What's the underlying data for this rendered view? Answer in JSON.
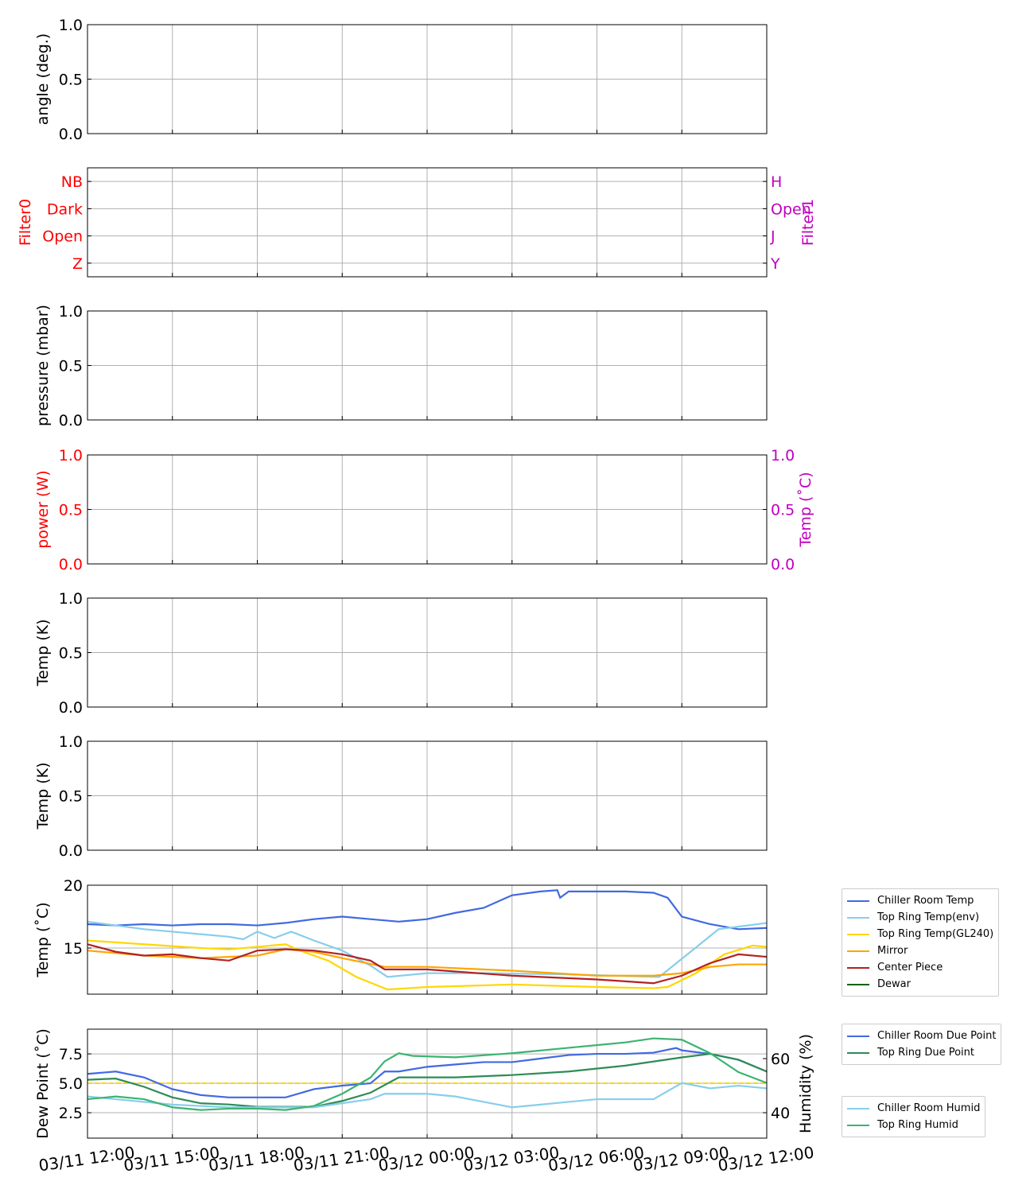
{
  "chart_data": [
    {
      "type": "line",
      "ylabel": "angle (deg.)",
      "ylim": [
        0,
        1
      ],
      "yticks": [
        "0.0",
        "0.5",
        "1.0"
      ],
      "series": []
    },
    {
      "type": "line",
      "ylabel": "Filter0",
      "ylabel_color": "#ff0000",
      "yticks": [
        "Z",
        "Open",
        "Dark",
        "NB"
      ],
      "ylabel2": "Filter1",
      "ylabel2_color": "#c000c0",
      "yticks2": [
        "Y",
        "J",
        "Open",
        "H"
      ],
      "series": []
    },
    {
      "type": "line",
      "ylabel": "pressure (mbar)",
      "ylim": [
        0,
        1
      ],
      "yticks": [
        "0.0",
        "0.5",
        "1.0"
      ],
      "series": []
    },
    {
      "type": "line",
      "ylabel": "power (W)",
      "ylabel_color": "#ff0000",
      "ylim": [
        0,
        1
      ],
      "yticks": [
        "0.0",
        "0.5",
        "1.0"
      ],
      "ylabel2": "Temp (˚C)",
      "ylabel2_color": "#c000c0",
      "ylim2": [
        0,
        1
      ],
      "yticks2": [
        "0.0",
        "0.5",
        "1.0"
      ],
      "series": []
    },
    {
      "type": "line",
      "ylabel": "Temp (K)",
      "ylim": [
        0,
        1
      ],
      "yticks": [
        "0.0",
        "0.5",
        "1.0"
      ],
      "series": []
    },
    {
      "type": "line",
      "ylabel": "Temp (K)",
      "ylim": [
        0,
        1
      ],
      "yticks": [
        "0.0",
        "0.5",
        "1.0"
      ],
      "series": []
    },
    {
      "type": "line",
      "ylabel": "Temp (˚C)",
      "ylim": [
        11.33,
        20
      ],
      "yticks": [
        "15",
        "20"
      ],
      "ytick_values": [
        15,
        20
      ],
      "legend": "right-outside",
      "series": [
        {
          "name": "Chiller Room Temp",
          "color": "#4169e1",
          "x": [
            0,
            1,
            2,
            3,
            4,
            5,
            6,
            7,
            8,
            9,
            10,
            11,
            12,
            13,
            14,
            15,
            16,
            16.6,
            16.7,
            17,
            18,
            19,
            20,
            20.5,
            21,
            22,
            23,
            24
          ],
          "y": [
            16.9,
            16.8,
            16.9,
            16.8,
            16.9,
            16.9,
            16.8,
            17.0,
            17.3,
            17.5,
            17.3,
            17.1,
            17.3,
            17.8,
            18.2,
            19.2,
            19.5,
            19.6,
            19.0,
            19.5,
            19.5,
            19.5,
            19.4,
            19.0,
            17.5,
            16.9,
            16.5,
            16.6
          ]
        },
        {
          "name": "Top Ring Temp(env)",
          "color": "#87ceeb",
          "x": [
            0,
            1,
            2,
            3,
            4,
            5,
            5.5,
            6,
            6.6,
            7.2,
            8,
            9,
            10,
            10.6,
            12,
            14,
            17,
            20.2,
            22.3,
            23,
            24
          ],
          "y": [
            17.1,
            16.8,
            16.5,
            16.3,
            16.1,
            15.9,
            15.7,
            16.3,
            15.8,
            16.3,
            15.6,
            14.8,
            13.6,
            12.7,
            13.0,
            13.0,
            12.9,
            12.7,
            16.5,
            16.7,
            17.0
          ]
        },
        {
          "name": "Top Ring Temp(GL240)",
          "color": "#ffd700",
          "x": [
            0,
            2,
            4,
            5,
            6,
            7,
            7.5,
            8.5,
            9.5,
            10.6,
            12,
            15,
            18,
            20,
            20.5,
            21.5,
            22.5,
            23.5,
            24
          ],
          "y": [
            15.6,
            15.3,
            15.0,
            14.9,
            15.1,
            15.3,
            14.8,
            14.0,
            12.7,
            11.7,
            11.9,
            12.1,
            11.9,
            11.8,
            11.9,
            13.0,
            14.5,
            15.2,
            15.1
          ]
        },
        {
          "name": "Mirror",
          "color": "#ffa500",
          "x": [
            0,
            2,
            4,
            6,
            7,
            8,
            9,
            10.5,
            12,
            15,
            18,
            20,
            21,
            22,
            23,
            24
          ],
          "y": [
            14.8,
            14.4,
            14.2,
            14.4,
            14.9,
            14.7,
            14.2,
            13.5,
            13.5,
            13.2,
            12.8,
            12.8,
            13.0,
            13.5,
            13.7,
            13.7
          ]
        },
        {
          "name": "Center Piece",
          "color": "#b22222",
          "x": [
            0,
            1,
            2,
            3,
            4,
            5,
            6,
            7,
            8,
            9,
            10,
            10.5,
            12,
            15,
            18,
            20,
            21,
            22,
            23,
            24
          ],
          "y": [
            15.3,
            14.7,
            14.4,
            14.5,
            14.2,
            14.0,
            14.8,
            14.9,
            14.8,
            14.5,
            14.0,
            13.3,
            13.3,
            12.8,
            12.5,
            12.2,
            12.8,
            13.8,
            14.5,
            14.3
          ]
        },
        {
          "name": "Dewar",
          "color": "#006400",
          "x": [],
          "y": []
        }
      ]
    },
    {
      "type": "line",
      "ylabel": "Dew Point (˚C)",
      "ylim": [
        0.34,
        9.6
      ],
      "yticks": [
        "2.5",
        "5.0",
        "7.5"
      ],
      "ytick_values": [
        2.5,
        5,
        7.5
      ],
      "ylabel2": "Humidity (%)",
      "ylim2": [
        30.6,
        70.9
      ],
      "yticks2": [
        "40",
        "60"
      ],
      "ytick2_values": [
        40,
        60
      ],
      "annotations": [
        {
          "type": "hline",
          "y": 5.0,
          "color": "#ffd700",
          "style": "dashed"
        }
      ],
      "xlabel_ticks": [
        "03/11 12:00",
        "03/11 15:00",
        "03/11 18:00",
        "03/11 21:00",
        "03/12 00:00",
        "03/12 03:00",
        "03/12 06:00",
        "03/12 09:00",
        "03/12 12:00"
      ],
      "xlim_hours": [
        0,
        24
      ],
      "series": [
        {
          "name": "Chiller Room Due Point",
          "axis": "left",
          "legend_group": 1,
          "color": "#4169e1",
          "x": [
            0,
            1,
            2,
            3,
            4,
            5,
            6,
            7,
            8,
            9,
            10,
            10.5,
            11,
            12,
            13,
            14,
            15,
            16,
            17,
            18,
            19,
            20,
            20.8,
            21,
            22,
            23,
            24
          ],
          "y": [
            5.8,
            6.0,
            5.5,
            4.5,
            4.0,
            3.8,
            3.8,
            3.8,
            4.5,
            4.8,
            5.0,
            6.0,
            6.0,
            6.4,
            6.6,
            6.8,
            6.8,
            7.1,
            7.4,
            7.5,
            7.5,
            7.6,
            8.0,
            7.8,
            7.5,
            7.0,
            6.0
          ]
        },
        {
          "name": "Top Ring Due Point",
          "axis": "left",
          "legend_group": 1,
          "color": "#2e8b57",
          "x": [
            0,
            1,
            2,
            3,
            4,
            5,
            6,
            7,
            8,
            9,
            10,
            11,
            11.5,
            13,
            15,
            17,
            19,
            21,
            22,
            23,
            24
          ],
          "y": [
            5.3,
            5.4,
            4.7,
            3.8,
            3.3,
            3.2,
            3.0,
            3.0,
            3.0,
            3.5,
            4.2,
            5.5,
            5.5,
            5.5,
            5.7,
            6.0,
            6.5,
            7.2,
            7.5,
            7.0,
            6.0
          ]
        },
        {
          "name": "Chiller Room Humid",
          "axis": "right",
          "legend_group": 2,
          "color": "#87ceeb",
          "x": [
            0,
            1,
            2,
            3,
            4,
            5,
            6,
            7,
            8,
            9,
            10,
            10.5,
            12,
            13,
            14,
            15,
            16,
            17,
            18,
            19,
            20,
            21,
            22,
            23,
            24
          ],
          "y": [
            46,
            45,
            44,
            43,
            42.5,
            42,
            42,
            42,
            42,
            43.5,
            45,
            47,
            47,
            46,
            44,
            42,
            43,
            44,
            45,
            45,
            45,
            51,
            49,
            50,
            49
          ]
        },
        {
          "name": "Top Ring Humid",
          "axis": "right",
          "legend_group": 2,
          "color": "#3cb371",
          "x": [
            0,
            1,
            2,
            3,
            4,
            5,
            6,
            7,
            8,
            9,
            10,
            10.5,
            11,
            11.5,
            13,
            15,
            17,
            19,
            20,
            21,
            22,
            23,
            24
          ],
          "y": [
            45,
            46,
            45,
            42,
            41,
            41.5,
            41.5,
            41,
            42.5,
            47,
            53,
            59,
            62,
            61,
            60.5,
            62,
            64,
            66,
            67.5,
            67,
            62,
            55,
            51
          ]
        }
      ]
    }
  ]
}
